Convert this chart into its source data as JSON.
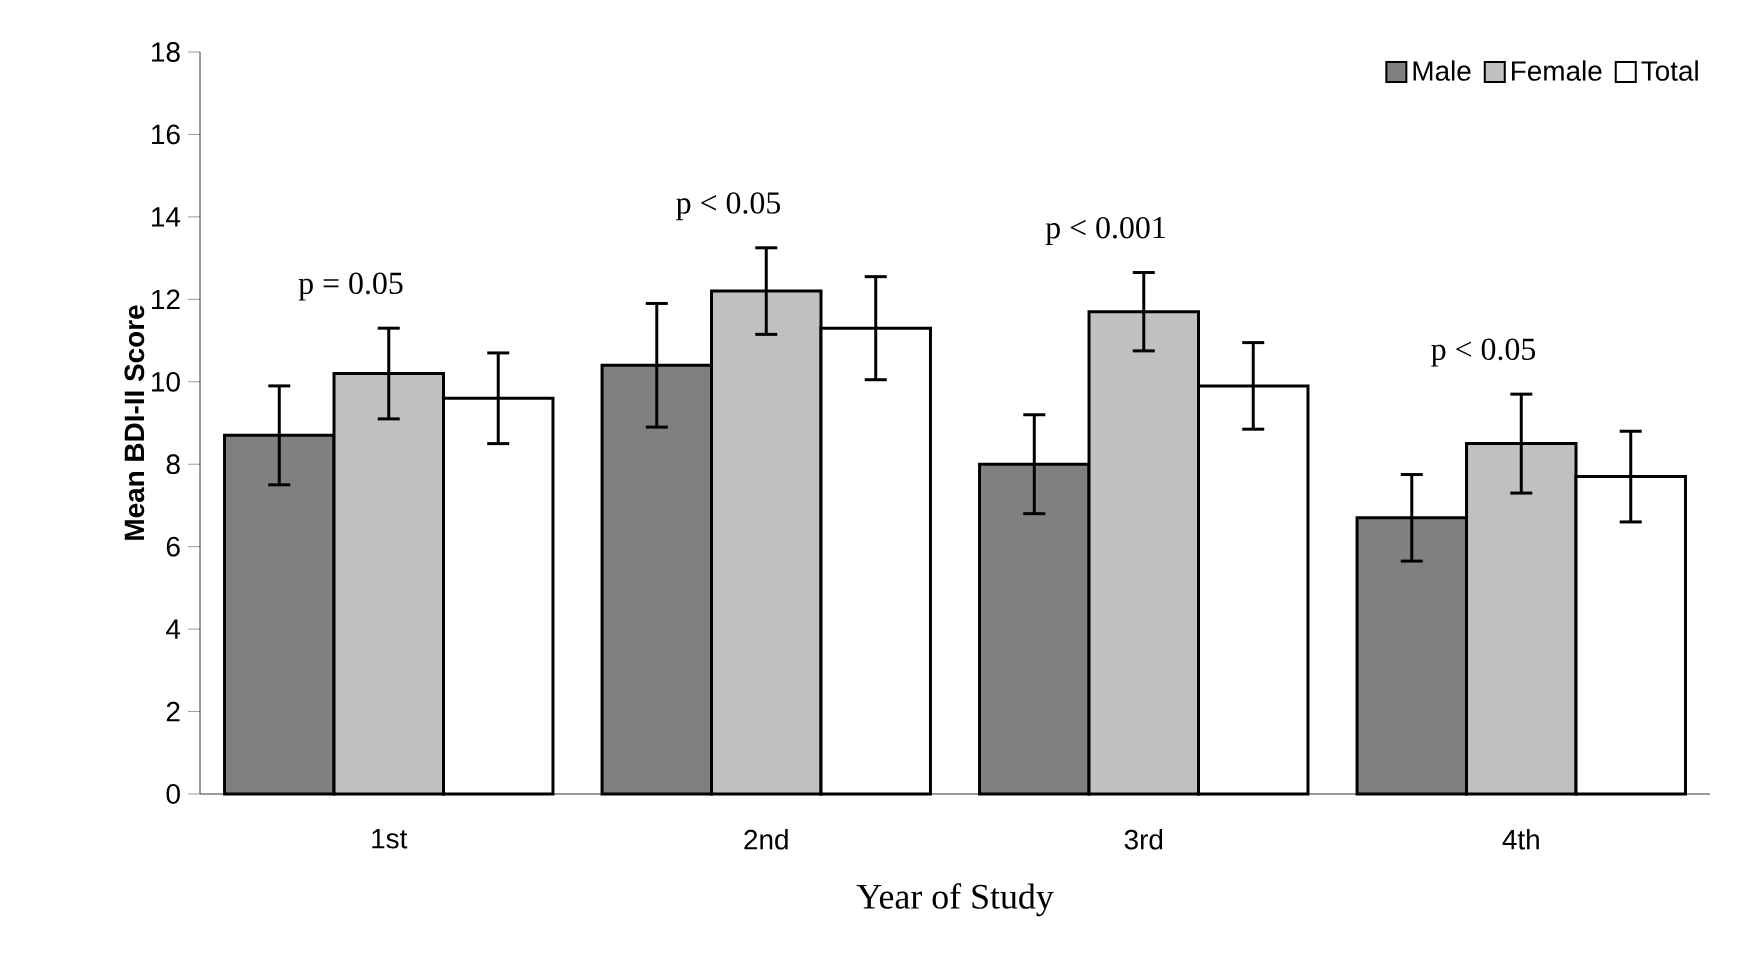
{
  "chart_data": {
    "type": "bar",
    "xlabel": "Year of Study",
    "ylabel": "Mean BDI-II Score",
    "categories": [
      "1st",
      "2nd",
      "3rd",
      "4th"
    ],
    "series": [
      {
        "name": "Male",
        "color": "#808080",
        "values": [
          8.7,
          10.4,
          8.0,
          6.7
        ],
        "errors": [
          1.2,
          1.5,
          1.2,
          1.05
        ]
      },
      {
        "name": "Female",
        "color": "#c0c0c0",
        "values": [
          10.2,
          12.2,
          11.7,
          8.5
        ],
        "errors": [
          1.1,
          1.05,
          0.95,
          1.2
        ]
      },
      {
        "name": "Total",
        "color": "#ffffff",
        "values": [
          9.6,
          11.3,
          9.9,
          7.7
        ],
        "errors": [
          1.1,
          1.25,
          1.05,
          1.1
        ]
      }
    ],
    "ylim": [
      0,
      18
    ],
    "yticks": [
      0,
      2,
      4,
      6,
      8,
      10,
      12,
      14,
      16,
      18
    ],
    "legend": "top right",
    "grid": false,
    "annotations": [
      "p = 0.05",
      "p < 0.05",
      "p < 0.001",
      "p < 0.05"
    ]
  }
}
